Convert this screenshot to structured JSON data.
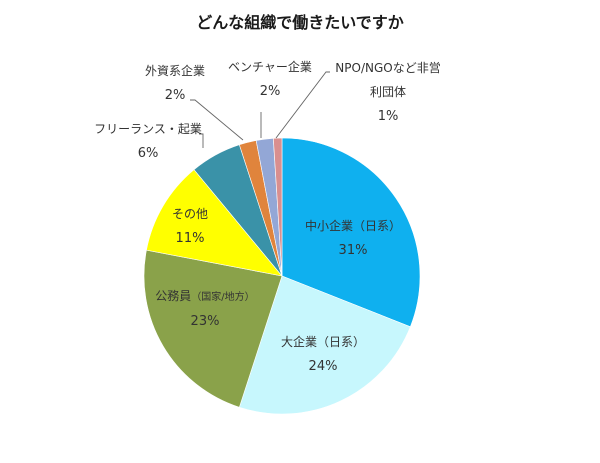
{
  "chart_data": {
    "type": "pie",
    "title": "どんな組織で働きたいですか",
    "start_angle": "12 o'clock, clockwise",
    "categories": [
      "中小企業（日系）",
      "大企業（日系）",
      "公務員（国家/地方）",
      "その他",
      "フリーランス・起業",
      "外資系企業",
      "ベンチャー企業",
      "NPO/NGOなど非営利団体"
    ],
    "values": [
      31,
      24,
      23,
      11,
      6,
      2,
      2,
      1
    ],
    "unit": "%",
    "colors": [
      "#0fb0ef",
      "#c7f7fd",
      "#8aa24a",
      "#ffff00",
      "#3a92a8",
      "#e0843c",
      "#93a7d6",
      "#d98f8f"
    ],
    "legend": "none (data labels)"
  },
  "labels": {
    "chusho": {
      "name": "中小企業（日系）",
      "pct": "31%"
    },
    "daikigyo": {
      "name": "大企業（日系）",
      "pct": "24%"
    },
    "komuin": {
      "name": "公務員",
      "name_small": "（国家/地方）",
      "pct": "23%"
    },
    "sonota": {
      "name": "その他",
      "pct": "11%"
    },
    "freelance": {
      "name": "フリーランス・起業",
      "pct": "6%"
    },
    "gaishi": {
      "name": "外資系企業",
      "pct": "2%"
    },
    "venture": {
      "name": "ベンチャー企業",
      "pct": "2%"
    },
    "npo": {
      "name_line1": "NPO/NGOなど非営",
      "name_line2": "利団体",
      "pct": "1%"
    }
  }
}
